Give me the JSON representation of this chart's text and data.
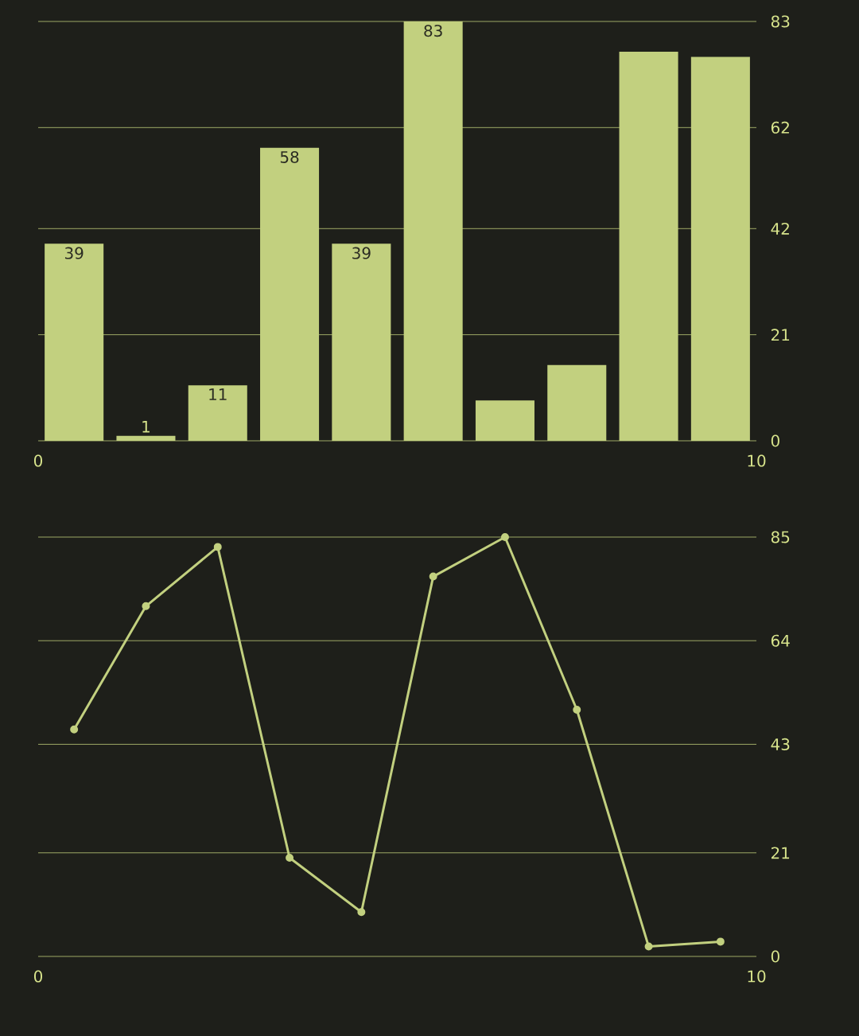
{
  "chart_data": [
    {
      "type": "bar",
      "x": [
        0.5,
        1.5,
        2.5,
        3.5,
        4.5,
        5.5,
        6.5,
        7.5,
        8.5,
        9.5
      ],
      "values": [
        39,
        1,
        11,
        58,
        39,
        83,
        8,
        15,
        77,
        76
      ],
      "value_labels": [
        "39",
        "1",
        "11",
        "58",
        "39",
        "83",
        null,
        null,
        null,
        null
      ],
      "color": "#c2d07f",
      "xlim": [
        0,
        10
      ],
      "xticks": [
        0,
        10
      ],
      "ylim": [
        0,
        83
      ],
      "yticks": [
        0,
        21,
        42,
        62,
        83
      ],
      "grid": "y"
    },
    {
      "type": "line",
      "x": [
        0.5,
        1.5,
        2.5,
        3.5,
        4.5,
        5.5,
        6.5,
        7.5,
        8.5,
        9.5
      ],
      "values": [
        46,
        71,
        83,
        20,
        9,
        77,
        85,
        50,
        2,
        3
      ],
      "color": "#c2d07f",
      "marker": "circle",
      "xlim": [
        0,
        10
      ],
      "xticks": [
        0,
        10
      ],
      "ylim": [
        0,
        85
      ],
      "yticks": [
        0,
        21,
        43,
        64,
        85
      ],
      "grid": "y"
    }
  ]
}
